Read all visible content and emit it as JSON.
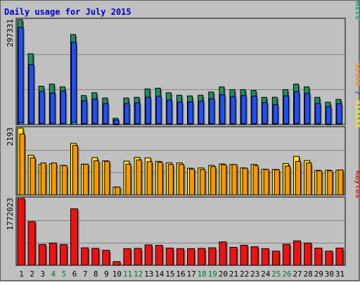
{
  "chart_data": {
    "type": "bar",
    "title": "Daily usage for July 2015",
    "x": [
      "1",
      "2",
      "3",
      "4",
      "5",
      "6",
      "7",
      "8",
      "9",
      "10",
      "11",
      "12",
      "13",
      "14",
      "15",
      "16",
      "17",
      "18",
      "19",
      "20",
      "21",
      "22",
      "23",
      "24",
      "25",
      "26",
      "27",
      "28",
      "29",
      "30",
      "31"
    ],
    "weekend_days": [
      "4",
      "5",
      "11",
      "12",
      "18",
      "19",
      "25",
      "26"
    ],
    "panels": [
      {
        "id": "top",
        "max_label": "297331",
        "ymax": 297331,
        "legend": [
          {
            "text": "Pages",
            "color": "#00c0ff"
          },
          {
            "text": " / ",
            "color": "#3a3a3a"
          },
          {
            "text": "Files",
            "color": "#2060ff"
          },
          {
            "text": " / ",
            "color": "#3a3a3a"
          },
          {
            "text": "Hits",
            "color": "#00aa66"
          }
        ],
        "series": [
          {
            "name": "Hits",
            "color": "#1f8f5f",
            "values": [
              297331,
              200760,
              108870,
              114810,
              106890,
              255410,
              82290,
              90210,
              75360,
              17810,
              75360,
              77340,
              101100,
              103080,
              90210,
              83280,
              81300,
              83280,
              92190,
              106890,
              98960,
              98960,
              96980,
              77340,
              77340,
              98960,
              114810,
              106890,
              77340,
              63480,
              71400
            ]
          },
          {
            "name": "Files",
            "color": "#1e50ff",
            "values": [
              275540,
              170070,
              94040,
              89080,
              95030,
              233630,
              67450,
              72410,
              59530,
              12900,
              59530,
              61500,
              77370,
              80350,
              69450,
              63500,
              64490,
              66470,
              73410,
              84320,
              79370,
              82340,
              80350,
              62500,
              56540,
              81340,
              93250,
              88290,
              59530,
              50600,
              59530
            ]
          },
          {
            "name": "Pages",
            "color": "#00c0ff",
            "values": [
              4960,
              3470,
              2980,
              3470,
              2970,
              5950,
              2480,
              2480,
              1980,
              990,
              1980,
              1980,
              2480,
              2480,
              1980,
              1980,
              1980,
              1980,
              2480,
              2480,
              1980,
              1980,
              1980,
              1980,
              1980,
              1980,
              2480,
              2480,
              1980,
              1490,
              1980
            ]
          }
        ]
      },
      {
        "id": "mid",
        "max_label": "2193",
        "ymax": 2193,
        "legend": [
          {
            "text": "Sites",
            "color": "#ff8800"
          },
          {
            "text": " / ",
            "color": "#3a3a3a"
          },
          {
            "text": "Visits",
            "color": "#ffee00"
          }
        ],
        "series": [
          {
            "name": "Visits",
            "color": "#ffe41a",
            "values": [
              2193,
              1305,
              1005,
              1020,
              971,
              1688,
              1010,
              1227,
              1118,
              257,
              1109,
              1231,
              1216,
              1100,
              1055,
              1050,
              877,
              884,
              970,
              1017,
              998,
              887,
              1002,
              844,
              836,
              1029,
              1263,
              1127,
              807,
              811,
              811
            ]
          },
          {
            "name": "Sites",
            "color": "#ff9600",
            "values": [
              2000,
              1216,
              1050,
              1050,
              961,
              1621,
              1005,
              1118,
              1102,
              257,
              1009,
              1148,
              1090,
              1070,
              1000,
              1001,
              850,
              832,
              930,
              987,
              998,
              877,
              960,
              836,
              827,
              947,
              1100,
              1050,
              788,
              791,
              821
            ]
          }
        ]
      },
      {
        "id": "bot",
        "max_label": "1772023",
        "ymax": 1772023,
        "legend": [
          {
            "text": "KBytes",
            "color": "#dd2222"
          }
        ],
        "series": [
          {
            "name": "KBytes",
            "color": "#ee1111",
            "values": [
              1772023,
              1159630,
              552140,
              590470,
              549640,
              1496910,
              464390,
              449080,
              398100,
              97100,
              441510,
              449080,
              542090,
              529870,
              457030,
              441510,
              441510,
              449080,
              465070,
              621030,
              475990,
              532260,
              492390,
              441510,
              376950,
              558440,
              647330,
              590470,
              456320,
              376950,
              456320
            ]
          }
        ]
      }
    ]
  }
}
